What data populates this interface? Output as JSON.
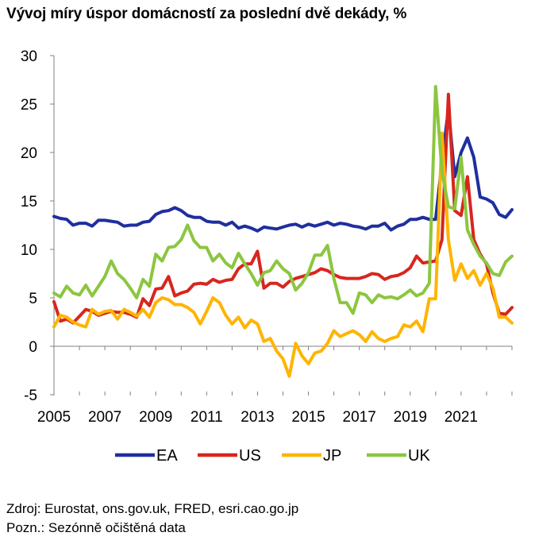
{
  "chart_data": {
    "type": "line",
    "title": "Vývoj míry úspor domácností za poslední dvě dekády, %",
    "xlabel": "",
    "ylabel": "",
    "xlim": [
      2005,
      2023.0
    ],
    "ylim": [
      -5,
      30
    ],
    "y_ticks": [
      -5,
      0,
      5,
      10,
      15,
      20,
      25,
      30
    ],
    "x_ticks": [
      2005,
      2007,
      2009,
      2011,
      2013,
      2015,
      2017,
      2019,
      2021
    ],
    "grid": false,
    "legend_position": "bottom",
    "series": [
      {
        "name": "EA",
        "color": "#1f2f9e",
        "points": [
          [
            2005.0,
            13.4
          ],
          [
            2005.25,
            13.2
          ],
          [
            2005.5,
            13.1
          ],
          [
            2005.75,
            12.5
          ],
          [
            2006.0,
            12.7
          ],
          [
            2006.25,
            12.7
          ],
          [
            2006.5,
            12.4
          ],
          [
            2006.75,
            13.0
          ],
          [
            2007.0,
            13.0
          ],
          [
            2007.25,
            12.9
          ],
          [
            2007.5,
            12.8
          ],
          [
            2007.75,
            12.4
          ],
          [
            2008.0,
            12.5
          ],
          [
            2008.25,
            12.5
          ],
          [
            2008.5,
            12.8
          ],
          [
            2008.75,
            12.9
          ],
          [
            2009.0,
            13.6
          ],
          [
            2009.25,
            13.9
          ],
          [
            2009.5,
            14.0
          ],
          [
            2009.75,
            14.3
          ],
          [
            2010.0,
            14.0
          ],
          [
            2010.25,
            13.5
          ],
          [
            2010.5,
            13.3
          ],
          [
            2010.75,
            13.3
          ],
          [
            2011.0,
            12.9
          ],
          [
            2011.25,
            12.8
          ],
          [
            2011.5,
            12.8
          ],
          [
            2011.75,
            12.5
          ],
          [
            2012.0,
            12.8
          ],
          [
            2012.25,
            12.2
          ],
          [
            2012.5,
            12.4
          ],
          [
            2012.75,
            12.2
          ],
          [
            2013.0,
            11.9
          ],
          [
            2013.25,
            12.3
          ],
          [
            2013.5,
            12.2
          ],
          [
            2013.75,
            12.1
          ],
          [
            2014.0,
            12.3
          ],
          [
            2014.25,
            12.5
          ],
          [
            2014.5,
            12.6
          ],
          [
            2014.75,
            12.3
          ],
          [
            2015.0,
            12.6
          ],
          [
            2015.25,
            12.4
          ],
          [
            2015.5,
            12.6
          ],
          [
            2015.75,
            12.8
          ],
          [
            2016.0,
            12.5
          ],
          [
            2016.25,
            12.7
          ],
          [
            2016.5,
            12.6
          ],
          [
            2016.75,
            12.4
          ],
          [
            2017.0,
            12.3
          ],
          [
            2017.25,
            12.1
          ],
          [
            2017.5,
            12.4
          ],
          [
            2017.75,
            12.4
          ],
          [
            2018.0,
            12.7
          ],
          [
            2018.25,
            12.0
          ],
          [
            2018.5,
            12.4
          ],
          [
            2018.75,
            12.6
          ],
          [
            2019.0,
            13.1
          ],
          [
            2019.25,
            13.1
          ],
          [
            2019.5,
            13.3
          ],
          [
            2019.75,
            13.1
          ],
          [
            2020.0,
            13.1
          ],
          [
            2020.25,
            19.0
          ],
          [
            2020.5,
            24.5
          ],
          [
            2020.75,
            17.5
          ],
          [
            2021.0,
            20.0
          ],
          [
            2021.25,
            21.5
          ],
          [
            2021.5,
            19.5
          ],
          [
            2021.75,
            15.4
          ],
          [
            2022.0,
            15.2
          ],
          [
            2022.25,
            14.8
          ],
          [
            2022.5,
            13.6
          ],
          [
            2022.75,
            13.3
          ],
          [
            2023.0,
            14.1
          ]
        ]
      },
      {
        "name": "US",
        "color": "#d7261e",
        "points": [
          [
            2005.0,
            4.6
          ],
          [
            2005.25,
            2.6
          ],
          [
            2005.5,
            2.8
          ],
          [
            2005.75,
            2.4
          ],
          [
            2006.0,
            3.1
          ],
          [
            2006.25,
            3.8
          ],
          [
            2006.5,
            3.6
          ],
          [
            2006.75,
            3.2
          ],
          [
            2007.0,
            3.4
          ],
          [
            2007.25,
            3.6
          ],
          [
            2007.5,
            3.5
          ],
          [
            2007.75,
            3.5
          ],
          [
            2008.0,
            3.3
          ],
          [
            2008.25,
            3.0
          ],
          [
            2008.5,
            4.9
          ],
          [
            2008.75,
            4.2
          ],
          [
            2009.0,
            5.9
          ],
          [
            2009.25,
            6.0
          ],
          [
            2009.5,
            7.2
          ],
          [
            2009.75,
            5.2
          ],
          [
            2010.0,
            5.5
          ],
          [
            2010.25,
            5.7
          ],
          [
            2010.5,
            6.4
          ],
          [
            2010.75,
            6.5
          ],
          [
            2011.0,
            6.4
          ],
          [
            2011.25,
            6.9
          ],
          [
            2011.5,
            6.6
          ],
          [
            2011.75,
            6.8
          ],
          [
            2012.0,
            6.9
          ],
          [
            2012.25,
            8.0
          ],
          [
            2012.5,
            8.5
          ],
          [
            2012.75,
            8.5
          ],
          [
            2013.0,
            9.8
          ],
          [
            2013.25,
            6.0
          ],
          [
            2013.5,
            6.5
          ],
          [
            2013.75,
            6.5
          ],
          [
            2014.0,
            6.1
          ],
          [
            2014.25,
            6.7
          ],
          [
            2014.5,
            7.0
          ],
          [
            2014.75,
            7.2
          ],
          [
            2015.0,
            7.4
          ],
          [
            2015.25,
            7.6
          ],
          [
            2015.5,
            8.0
          ],
          [
            2015.75,
            7.8
          ],
          [
            2016.0,
            7.4
          ],
          [
            2016.25,
            7.1
          ],
          [
            2016.5,
            7.0
          ],
          [
            2016.75,
            7.0
          ],
          [
            2017.0,
            7.0
          ],
          [
            2017.25,
            7.2
          ],
          [
            2017.5,
            7.5
          ],
          [
            2017.75,
            7.4
          ],
          [
            2018.0,
            6.9
          ],
          [
            2018.25,
            7.2
          ],
          [
            2018.5,
            7.3
          ],
          [
            2018.75,
            7.6
          ],
          [
            2019.0,
            8.1
          ],
          [
            2019.25,
            9.3
          ],
          [
            2019.5,
            8.6
          ],
          [
            2019.75,
            8.7
          ],
          [
            2020.0,
            8.8
          ],
          [
            2020.25,
            11.0
          ],
          [
            2020.5,
            26.0
          ],
          [
            2020.75,
            14.0
          ],
          [
            2021.0,
            13.5
          ],
          [
            2021.25,
            17.5
          ],
          [
            2021.5,
            11.0
          ],
          [
            2021.75,
            9.5
          ],
          [
            2022.0,
            8.5
          ],
          [
            2022.25,
            5.5
          ],
          [
            2022.5,
            3.4
          ],
          [
            2022.75,
            3.3
          ],
          [
            2023.0,
            4.0
          ]
        ]
      },
      {
        "name": "JP",
        "color": "#ffb400",
        "points": [
          [
            2005.0,
            2.0
          ],
          [
            2005.25,
            3.2
          ],
          [
            2005.5,
            3.0
          ],
          [
            2005.75,
            2.5
          ],
          [
            2006.0,
            2.2
          ],
          [
            2006.25,
            2.0
          ],
          [
            2006.5,
            3.8
          ],
          [
            2006.75,
            3.3
          ],
          [
            2007.0,
            3.6
          ],
          [
            2007.25,
            3.7
          ],
          [
            2007.5,
            2.8
          ],
          [
            2007.75,
            3.8
          ],
          [
            2008.0,
            3.5
          ],
          [
            2008.25,
            3.1
          ],
          [
            2008.5,
            3.8
          ],
          [
            2008.75,
            3.0
          ],
          [
            2009.0,
            4.5
          ],
          [
            2009.25,
            5.0
          ],
          [
            2009.5,
            4.8
          ],
          [
            2009.75,
            4.3
          ],
          [
            2010.0,
            4.3
          ],
          [
            2010.25,
            4.0
          ],
          [
            2010.5,
            3.5
          ],
          [
            2010.75,
            2.3
          ],
          [
            2011.0,
            3.6
          ],
          [
            2011.25,
            5.0
          ],
          [
            2011.5,
            4.5
          ],
          [
            2011.75,
            3.2
          ],
          [
            2012.0,
            2.3
          ],
          [
            2012.25,
            3.0
          ],
          [
            2012.5,
            1.9
          ],
          [
            2012.75,
            2.7
          ],
          [
            2013.0,
            2.3
          ],
          [
            2013.25,
            0.5
          ],
          [
            2013.5,
            0.8
          ],
          [
            2013.75,
            -0.5
          ],
          [
            2014.0,
            -1.3
          ],
          [
            2014.25,
            -3.1
          ],
          [
            2014.5,
            0.3
          ],
          [
            2014.75,
            -1.0
          ],
          [
            2015.0,
            -1.8
          ],
          [
            2015.25,
            -0.7
          ],
          [
            2015.5,
            -0.5
          ],
          [
            2015.75,
            0.3
          ],
          [
            2016.0,
            1.6
          ],
          [
            2016.25,
            1.0
          ],
          [
            2016.5,
            1.3
          ],
          [
            2016.75,
            1.6
          ],
          [
            2017.0,
            1.2
          ],
          [
            2017.25,
            0.5
          ],
          [
            2017.5,
            1.5
          ],
          [
            2017.75,
            0.8
          ],
          [
            2018.0,
            0.5
          ],
          [
            2018.25,
            0.8
          ],
          [
            2018.5,
            1.0
          ],
          [
            2018.75,
            2.2
          ],
          [
            2019.0,
            2.0
          ],
          [
            2019.25,
            2.6
          ],
          [
            2019.5,
            1.5
          ],
          [
            2019.75,
            4.9
          ],
          [
            2020.0,
            4.9
          ],
          [
            2020.25,
            22.0
          ],
          [
            2020.5,
            11.0
          ],
          [
            2020.75,
            6.8
          ],
          [
            2021.0,
            8.5
          ],
          [
            2021.25,
            7.0
          ],
          [
            2021.5,
            7.8
          ],
          [
            2021.75,
            6.3
          ],
          [
            2022.0,
            7.5
          ],
          [
            2022.25,
            6.0
          ],
          [
            2022.5,
            3.0
          ],
          [
            2022.75,
            3.0
          ],
          [
            2023.0,
            2.4
          ]
        ]
      },
      {
        "name": "UK",
        "color": "#8cc63f",
        "points": [
          [
            2005.0,
            5.5
          ],
          [
            2005.25,
            5.1
          ],
          [
            2005.5,
            6.2
          ],
          [
            2005.75,
            5.5
          ],
          [
            2006.0,
            5.3
          ],
          [
            2006.25,
            6.3
          ],
          [
            2006.5,
            5.2
          ],
          [
            2006.75,
            6.2
          ],
          [
            2007.0,
            7.2
          ],
          [
            2007.25,
            8.8
          ],
          [
            2007.5,
            7.5
          ],
          [
            2007.75,
            6.9
          ],
          [
            2008.0,
            6.0
          ],
          [
            2008.25,
            5.0
          ],
          [
            2008.5,
            6.9
          ],
          [
            2008.75,
            6.2
          ],
          [
            2009.0,
            9.5
          ],
          [
            2009.25,
            8.8
          ],
          [
            2009.5,
            10.2
          ],
          [
            2009.75,
            10.3
          ],
          [
            2010.0,
            11.0
          ],
          [
            2010.25,
            12.5
          ],
          [
            2010.5,
            10.9
          ],
          [
            2010.75,
            10.2
          ],
          [
            2011.0,
            10.2
          ],
          [
            2011.25,
            8.8
          ],
          [
            2011.5,
            9.5
          ],
          [
            2011.75,
            8.6
          ],
          [
            2012.0,
            8.1
          ],
          [
            2012.25,
            9.6
          ],
          [
            2012.5,
            8.5
          ],
          [
            2012.75,
            7.5
          ],
          [
            2013.0,
            6.3
          ],
          [
            2013.25,
            7.6
          ],
          [
            2013.5,
            7.8
          ],
          [
            2013.75,
            8.8
          ],
          [
            2014.0,
            8.0
          ],
          [
            2014.25,
            7.5
          ],
          [
            2014.5,
            5.8
          ],
          [
            2014.75,
            6.5
          ],
          [
            2015.0,
            7.6
          ],
          [
            2015.25,
            9.4
          ],
          [
            2015.5,
            9.4
          ],
          [
            2015.75,
            10.4
          ],
          [
            2016.0,
            7.0
          ],
          [
            2016.25,
            4.5
          ],
          [
            2016.5,
            4.5
          ],
          [
            2016.75,
            3.4
          ],
          [
            2017.0,
            5.5
          ],
          [
            2017.25,
            5.3
          ],
          [
            2017.5,
            4.5
          ],
          [
            2017.75,
            5.3
          ],
          [
            2018.0,
            5.0
          ],
          [
            2018.25,
            5.1
          ],
          [
            2018.5,
            4.9
          ],
          [
            2018.75,
            5.3
          ],
          [
            2019.0,
            5.8
          ],
          [
            2019.25,
            5.2
          ],
          [
            2019.5,
            5.5
          ],
          [
            2019.75,
            6.5
          ],
          [
            2020.0,
            26.8
          ],
          [
            2020.25,
            18.0
          ],
          [
            2020.5,
            14.4
          ],
          [
            2020.75,
            14.2
          ],
          [
            2021.0,
            19.5
          ],
          [
            2021.25,
            12.0
          ],
          [
            2021.5,
            10.5
          ],
          [
            2021.75,
            9.3
          ],
          [
            2022.0,
            8.6
          ],
          [
            2022.25,
            7.5
          ],
          [
            2022.5,
            7.3
          ],
          [
            2022.75,
            8.7
          ],
          [
            2023.0,
            9.3
          ]
        ]
      }
    ]
  },
  "notes": {
    "source": "Zdroj: Eurostat, ons.gov.uk, FRED, esri.cao.go.jp",
    "adjustment": "Pozn.: Sezónně očištěná data"
  }
}
